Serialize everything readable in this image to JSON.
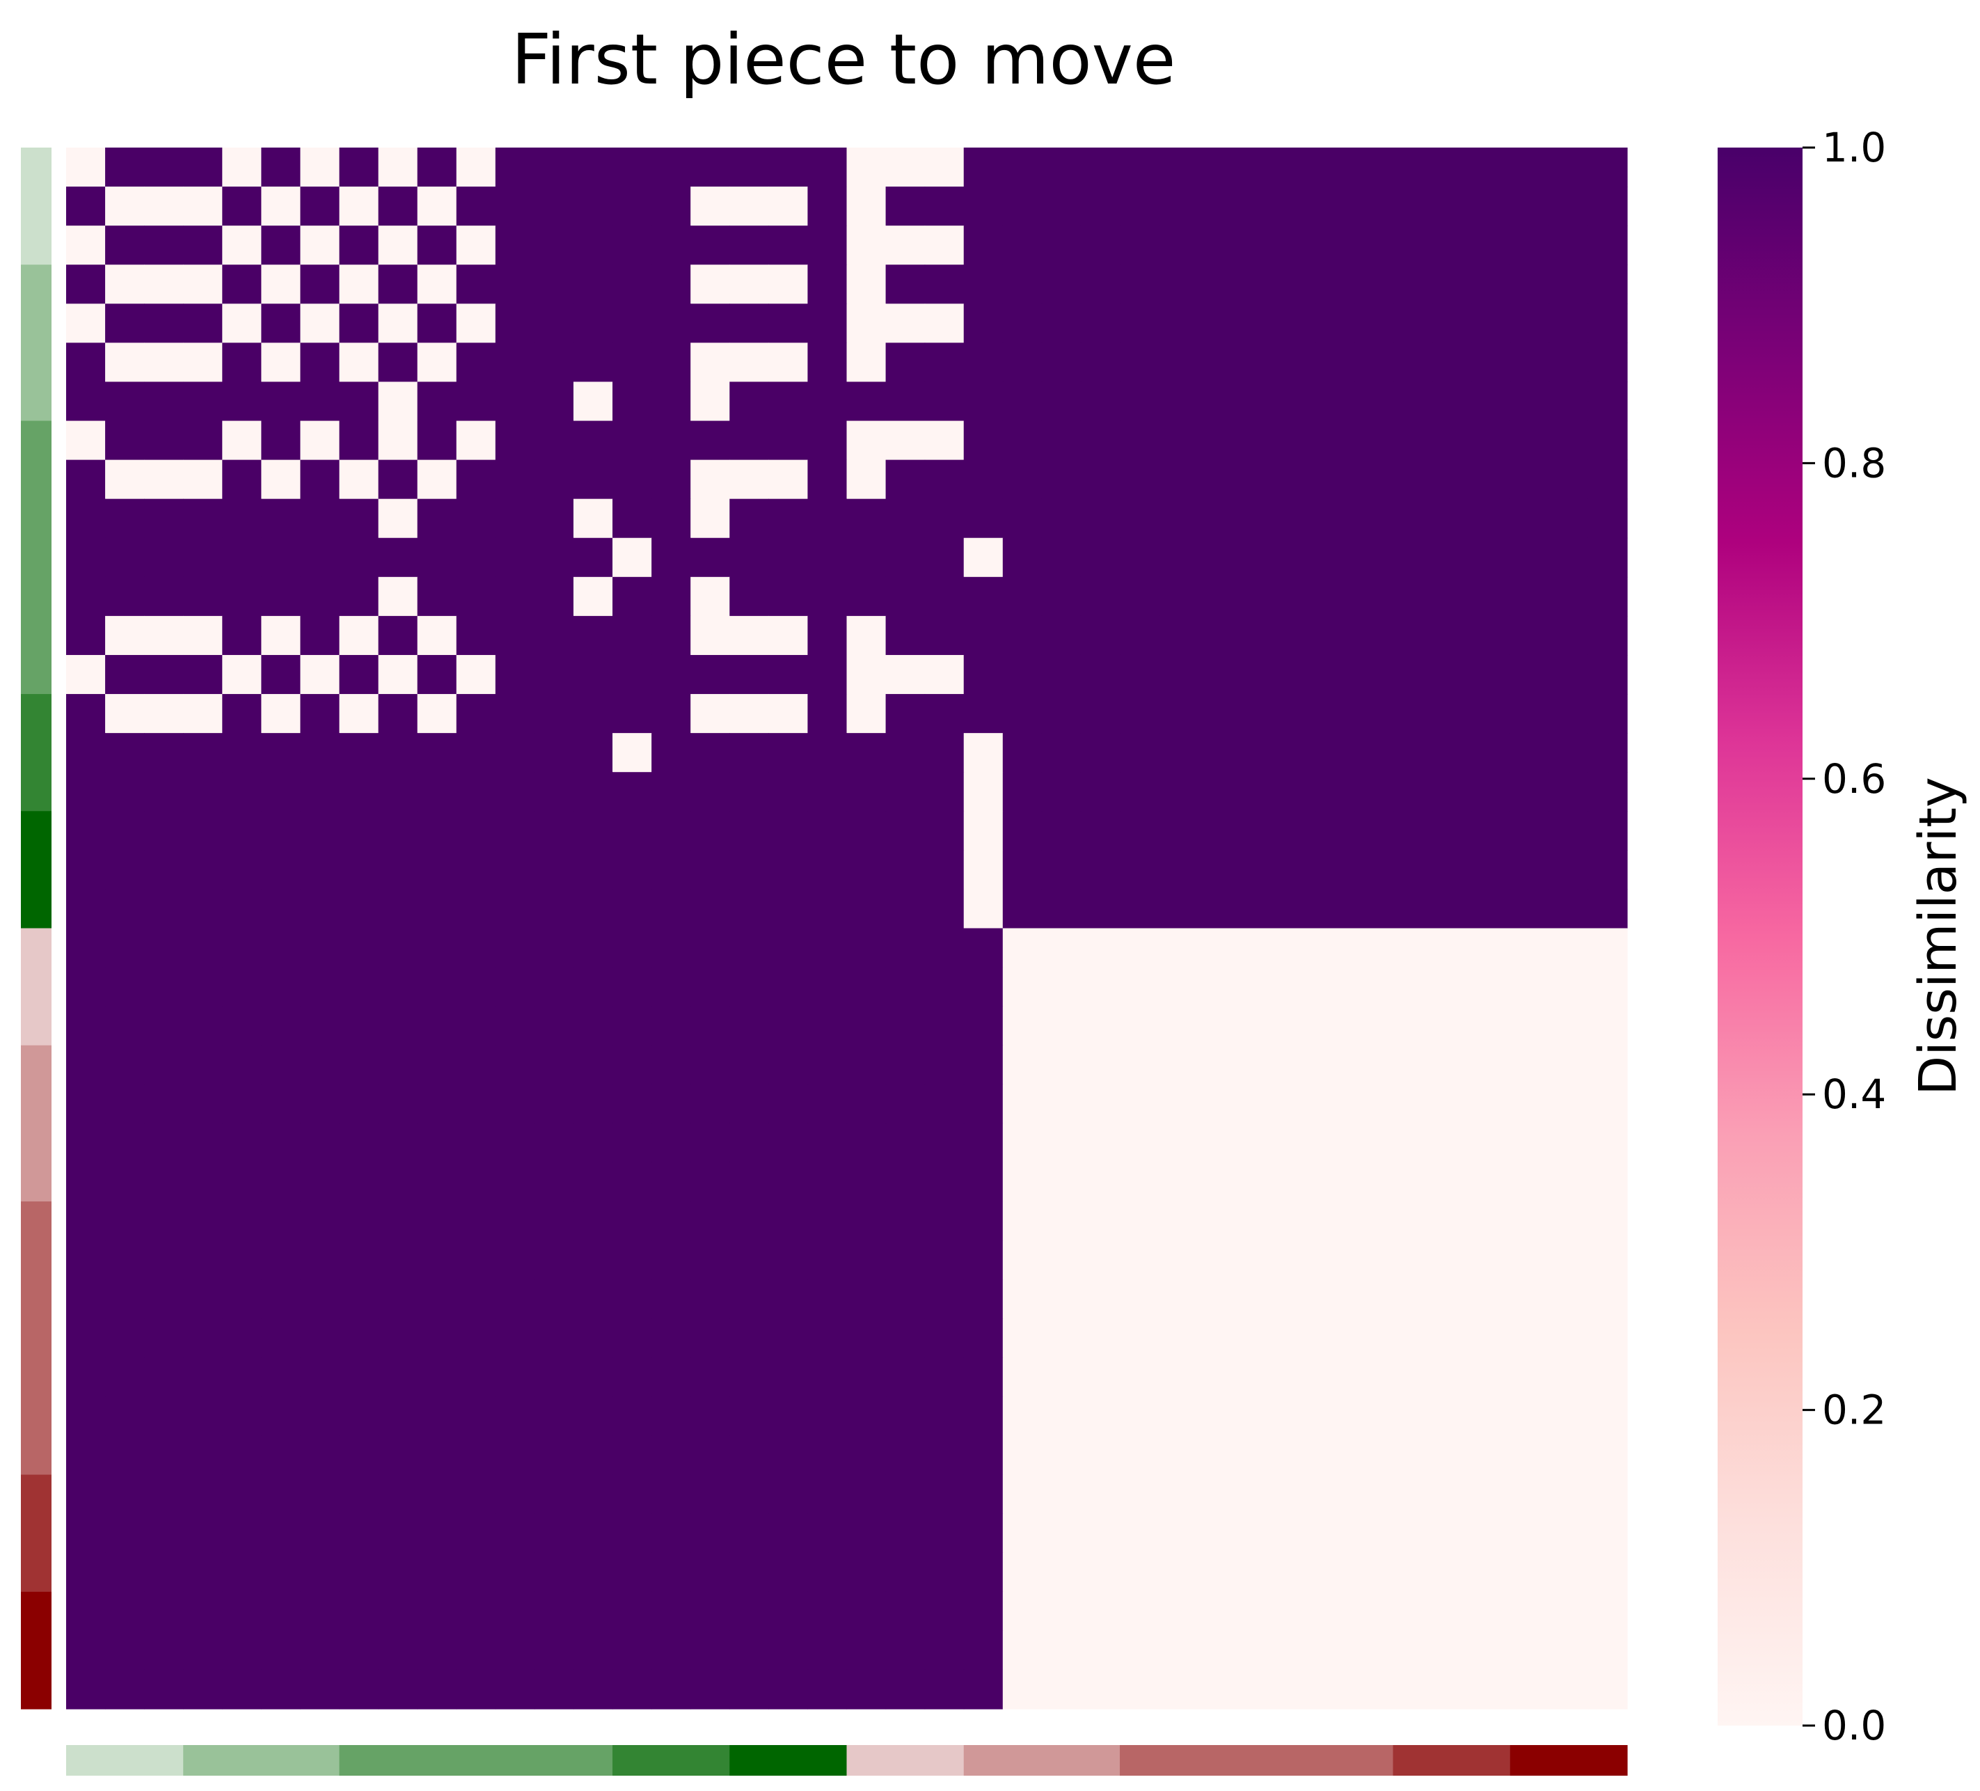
{
  "chart_data": {
    "type": "heatmap",
    "title": "First piece to move",
    "n": 40,
    "matrix_rows": [
      "0111010101011111111100011111111111111111",
      "1000101010111111000101111111111111111111",
      "0111010101011111111100011111111111111111",
      "1000101010111111000101111111111111111111",
      "0111010101011111111100011111111111111111",
      "1000101010111111000101111111111111111111",
      "1111111101111011011111111111111111111111",
      "0111010101011111111100011111111111111111",
      "1000101010111111000101111111111111111111",
      "1111111101111011011111111111111111111111",
      "1111111111111101111111101111111111111111",
      "1111111101111011011111111111111111111111",
      "1000101010111111000101111111111111111111",
      "0111010101011111111100011111111111111111",
      "1000101010111111000101111111111111111111",
      "1111111111111101111111101111111111111111",
      "1111111111111111111111101111111111111111",
      "1111111111111111111111101111111111111111",
      "1111111111111111111111101111111111111111",
      "1111111111111111111111101111111111111111",
      "1111111111111111111111110000000000000000",
      "1111111111111111111111110000000000000000",
      "1111111111111111111111110000000000000000",
      "1111111111111111111111110000000000000000",
      "1111111111111111111111110000000000000000",
      "1111111111111111111111110000000000000000",
      "1111111111111111111111110000000000000000",
      "1111111111111111111111110000000000000000",
      "1111111111111111111111110000000000000000",
      "1111111111111111111111110000000000000000",
      "1111111111111111111111110000000000000000",
      "1111111111111111111111110000000000000000",
      "1111111111111111111111110000000000000000",
      "1111111111111111111111110000000000000000",
      "1111111111111111111111110000000000000000",
      "1111111111111111111111110000000000000000",
      "1111111111111111111111110000000000000000",
      "1111111111111111111111110000000000000000",
      "1111111111111111111111110000000000000000",
      "1111111111111111111111110000000000000000"
    ],
    "group_colors": [
      {
        "count": 3,
        "color": "#cce0cc"
      },
      {
        "count": 4,
        "color": "#99c299"
      },
      {
        "count": 7,
        "color": "#66a366"
      },
      {
        "count": 3,
        "color": "#338533"
      },
      {
        "count": 3,
        "color": "#006600"
      },
      {
        "count": 3,
        "color": "#e6c8c8"
      },
      {
        "count": 4,
        "color": "#d09898"
      },
      {
        "count": 7,
        "color": "#b86666"
      },
      {
        "count": 3,
        "color": "#a03333"
      },
      {
        "count": 3,
        "color": "#8b0000"
      }
    ],
    "colorbar": {
      "label": "Dissimilarity",
      "range": [
        0.0,
        1.0
      ],
      "ticks": [
        "0.0",
        "0.2",
        "0.4",
        "0.6",
        "0.8",
        "1.0"
      ],
      "stops": [
        "#fff5f3",
        "#fde0dd",
        "#fcc5c0",
        "#fa9fb5",
        "#f768a1",
        "#dd3497",
        "#ae017e",
        "#7a0177",
        "#49006a"
      ]
    },
    "value_colors": {
      "0": "#fff5f3",
      "1": "#4a0066"
    }
  }
}
